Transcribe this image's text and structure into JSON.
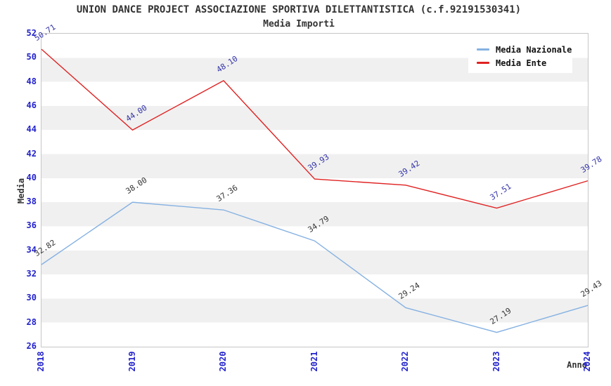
{
  "header": {
    "title": "UNION DANCE PROJECT ASSOCIAZIONE SPORTIVA DILETTANTISTICA (c.f.92191530341)",
    "subtitle": "Media Importi"
  },
  "colors": {
    "tick_label": "#2222cc",
    "title_text": "#333333",
    "band_gray": "#f0f0f0",
    "plot_border": "#c6c6c6",
    "series_nazionale": "#85b1e2",
    "series_ente": "#e02222",
    "label_nazionale": "#333333",
    "label_ente": "#3333aa"
  },
  "chart_data": {
    "type": "line",
    "title": "UNION DANCE PROJECT ASSOCIAZIONE SPORTIVA DILETTANTISTICA (c.f.92191530341)",
    "subtitle": "Media Importi",
    "xlabel": "Anno",
    "ylabel": "Media",
    "categories": [
      "2018",
      "2019",
      "2020",
      "2021",
      "2022",
      "2023",
      "2024"
    ],
    "ylim": [
      26,
      52
    ],
    "yticks": [
      52,
      50,
      48,
      46,
      44,
      42,
      40,
      38,
      36,
      34,
      32,
      30,
      28,
      26
    ],
    "grid": "alternating horizontal bands every 2 units, white/gray",
    "legend_position": "top-right",
    "legend_background": "#ffffff",
    "series": [
      {
        "name": "Media Nazionale",
        "color": "#85b1e2",
        "label_color": "#333333",
        "values": [
          32.82,
          38.0,
          37.36,
          34.79,
          29.24,
          27.19,
          29.43
        ],
        "labels": [
          "32.82",
          "38.00",
          "37.36",
          "34.79",
          "29.24",
          "27.19",
          "29.43"
        ]
      },
      {
        "name": "Media Ente",
        "color": "#e02222",
        "label_color": "#3333aa",
        "values": [
          50.71,
          44.0,
          48.1,
          39.93,
          39.42,
          37.51,
          39.78
        ],
        "labels": [
          "50.71",
          "44.00",
          "48.10",
          "39.93",
          "39.42",
          "37.51",
          "39.78"
        ]
      }
    ]
  }
}
